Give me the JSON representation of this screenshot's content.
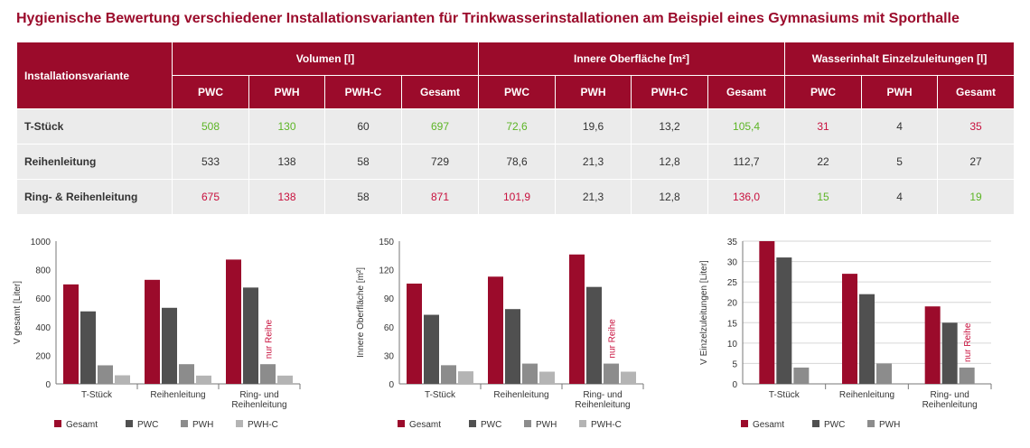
{
  "title": "Hygienische Bewertung verschiedener Installationsvarianten für Trinkwasserinstallationen am Beispiel eines Gymnasiums mit Sporthalle",
  "table": {
    "corner_label": "Installationsvariante",
    "groups": [
      {
        "label": "Volumen [l]",
        "cols": [
          "PWC",
          "PWH",
          "PWH-C",
          "Gesamt"
        ]
      },
      {
        "label": "Innere Oberfläche [m²]",
        "cols": [
          "PWC",
          "PWH",
          "PWH-C",
          "Gesamt"
        ]
      },
      {
        "label": "Wasserinhalt Einzelzuleitungen [l]",
        "cols": [
          "PWC",
          "PWH",
          "Gesamt"
        ]
      }
    ],
    "rows": [
      {
        "label": "T-Stück",
        "cells": [
          {
            "v": "508",
            "c": "green"
          },
          {
            "v": "130",
            "c": "green"
          },
          {
            "v": "60",
            "c": "black"
          },
          {
            "v": "697",
            "c": "green"
          },
          {
            "v": "72,6",
            "c": "green"
          },
          {
            "v": "19,6",
            "c": "black"
          },
          {
            "v": "13,2",
            "c": "black"
          },
          {
            "v": "105,4",
            "c": "green"
          },
          {
            "v": "31",
            "c": "red"
          },
          {
            "v": "4",
            "c": "black"
          },
          {
            "v": "35",
            "c": "red"
          }
        ]
      },
      {
        "label": "Reihenleitung",
        "cells": [
          {
            "v": "533",
            "c": "black"
          },
          {
            "v": "138",
            "c": "black"
          },
          {
            "v": "58",
            "c": "black"
          },
          {
            "v": "729",
            "c": "black"
          },
          {
            "v": "78,6",
            "c": "black"
          },
          {
            "v": "21,3",
            "c": "black"
          },
          {
            "v": "12,8",
            "c": "black"
          },
          {
            "v": "112,7",
            "c": "black"
          },
          {
            "v": "22",
            "c": "black"
          },
          {
            "v": "5",
            "c": "black"
          },
          {
            "v": "27",
            "c": "black"
          }
        ]
      },
      {
        "label": "Ring- & Reihenleitung",
        "cells": [
          {
            "v": "675",
            "c": "red"
          },
          {
            "v": "138",
            "c": "red"
          },
          {
            "v": "58",
            "c": "black"
          },
          {
            "v": "871",
            "c": "red"
          },
          {
            "v": "101,9",
            "c": "red"
          },
          {
            "v": "21,3",
            "c": "black"
          },
          {
            "v": "12,8",
            "c": "black"
          },
          {
            "v": "136,0",
            "c": "red"
          },
          {
            "v": "15",
            "c": "green"
          },
          {
            "v": "4",
            "c": "black"
          },
          {
            "v": "19",
            "c": "green"
          }
        ]
      }
    ],
    "colors": {
      "header": "#9b0b2b",
      "green": "#5db526",
      "red": "#c8103d",
      "black": "#333333",
      "row_bg": "#ebebeb"
    }
  },
  "chart_data": [
    {
      "type": "bar",
      "ylabel": "V gesamt [Liter]",
      "ylim": [
        0,
        1000
      ],
      "yticks": [
        0,
        200,
        400,
        600,
        800,
        1000
      ],
      "categories": [
        [
          "T-Stück"
        ],
        [
          "Reihenleitung"
        ],
        [
          "Ring- und",
          "Reihenleitung"
        ]
      ],
      "series": [
        {
          "name": "Gesamt",
          "color": "#9b0b2b",
          "values": [
            697,
            729,
            871
          ]
        },
        {
          "name": "PWC",
          "color": "#505050",
          "values": [
            508,
            533,
            675
          ]
        },
        {
          "name": "PWH",
          "color": "#8c8c8c",
          "values": [
            130,
            138,
            138
          ]
        },
        {
          "name": "PWH-C",
          "color": "#b4b4b4",
          "values": [
            60,
            58,
            58
          ]
        }
      ],
      "annotation": {
        "text": "nur Reihe",
        "category": 2,
        "series": 2
      },
      "grid": false,
      "legend": "bottom"
    },
    {
      "type": "bar",
      "ylabel": "Innere Oberfläche [m²]",
      "ylim": [
        0,
        150
      ],
      "yticks": [
        0,
        30,
        60,
        90,
        120,
        150
      ],
      "categories": [
        [
          "T-Stück"
        ],
        [
          "Reihenleitung"
        ],
        [
          "Ring- und",
          "Reihenleitung"
        ]
      ],
      "series": [
        {
          "name": "Gesamt",
          "color": "#9b0b2b",
          "values": [
            105.4,
            112.7,
            136.0
          ]
        },
        {
          "name": "PWC",
          "color": "#505050",
          "values": [
            72.6,
            78.6,
            101.9
          ]
        },
        {
          "name": "PWH",
          "color": "#8c8c8c",
          "values": [
            19.6,
            21.3,
            21.3
          ]
        },
        {
          "name": "PWH-C",
          "color": "#b4b4b4",
          "values": [
            13.2,
            12.8,
            12.8
          ]
        }
      ],
      "annotation": {
        "text": "nur Reihe",
        "category": 2,
        "series": 2
      },
      "grid": false,
      "legend": "bottom"
    },
    {
      "type": "bar",
      "ylabel": "V Einzelzuleitungen [Liter]",
      "ylim": [
        0,
        35
      ],
      "yticks": [
        0,
        5,
        10,
        15,
        20,
        25,
        30,
        35
      ],
      "categories": [
        [
          "T-Stück"
        ],
        [
          "Reihenleitung"
        ],
        [
          "Ring- und",
          "Reihenleitung"
        ]
      ],
      "series": [
        {
          "name": "Gesamt",
          "color": "#9b0b2b",
          "values": [
            35,
            27,
            19
          ]
        },
        {
          "name": "PWC",
          "color": "#505050",
          "values": [
            31,
            22,
            15
          ]
        },
        {
          "name": "PWH",
          "color": "#8c8c8c",
          "values": [
            4,
            5,
            4
          ]
        }
      ],
      "annotation": {
        "text": "nur Reihe",
        "category": 2,
        "series": 2
      },
      "grid": true,
      "legend": "bottom"
    }
  ]
}
